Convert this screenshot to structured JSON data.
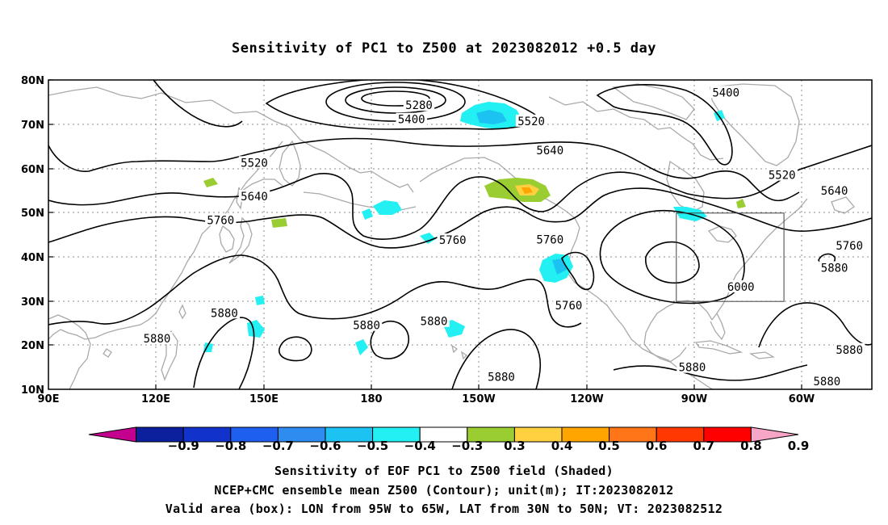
{
  "title": "Sensitivity of PC1 to Z500 at 2023082012 +0.5 day",
  "lat_labels": [
    "80N",
    "70N",
    "60N",
    "50N",
    "40N",
    "30N",
    "20N",
    "10N"
  ],
  "lon_labels": [
    "90E",
    "120E",
    "150E",
    "180",
    "150W",
    "120W",
    "90W",
    "60W"
  ],
  "contour_labels": [
    {
      "text": "5280",
      "lon": 189,
      "lat": 74.3
    },
    {
      "text": "5400",
      "lon": 187,
      "lat": 71.1
    },
    {
      "text": "5520",
      "lon": 219,
      "lat": 70.7
    },
    {
      "text": "5400",
      "lon": 271,
      "lat": 77.2
    },
    {
      "text": "5640",
      "lon": 224,
      "lat": 64.1
    },
    {
      "text": "5520",
      "lon": 145,
      "lat": 61.3
    },
    {
      "text": "5520",
      "lon": 286,
      "lat": 58.5
    },
    {
      "text": "5640",
      "lon": 145,
      "lat": 53.7
    },
    {
      "text": "5640",
      "lon": 300,
      "lat": 55.0
    },
    {
      "text": "5760",
      "lon": 136,
      "lat": 48.3
    },
    {
      "text": "5760",
      "lon": 198,
      "lat": 43.8
    },
    {
      "text": "5760",
      "lon": 224,
      "lat": 43.9
    },
    {
      "text": "5760",
      "lon": 304,
      "lat": 42.5
    },
    {
      "text": "5880",
      "lon": 300,
      "lat": 37.5
    },
    {
      "text": "6000",
      "lon": 275,
      "lat": 33.2
    },
    {
      "text": "5760",
      "lon": 229,
      "lat": 29.0
    },
    {
      "text": "5880",
      "lon": 137,
      "lat": 27.3
    },
    {
      "text": "5880",
      "lon": 119,
      "lat": 21.5
    },
    {
      "text": "5880",
      "lon": 175,
      "lat": 24.5
    },
    {
      "text": "5880",
      "lon": 193,
      "lat": 25.4
    },
    {
      "text": "5880",
      "lon": 304,
      "lat": 19.0
    },
    {
      "text": "5880",
      "lon": 262,
      "lat": 15.0
    },
    {
      "text": "5880",
      "lon": 211,
      "lat": 12.8
    },
    {
      "text": "5880",
      "lon": 298,
      "lat": 11.8
    }
  ],
  "valid_box": {
    "lon_west": -95,
    "lon_east": -65,
    "lat_south": 30,
    "lat_north": 50
  },
  "colorbar": {
    "tick_labels": [
      "-0.9",
      "-0.8",
      "-0.7",
      "-0.6",
      "-0.5",
      "-0.4",
      "-0.3",
      "0.3",
      "0.4",
      "0.5",
      "0.6",
      "0.7",
      "0.8",
      "0.9"
    ],
    "colors": [
      "#c4008f",
      "#0c1f9c",
      "#1133cc",
      "#1f5ff0",
      "#2e8cf0",
      "#1cc3f2",
      "#22f0f2",
      "#ffffff",
      "#9acd32",
      "#ffd040",
      "#ffa500",
      "#ff7518",
      "#ff3700",
      "#ff0000",
      "#f7a6c8"
    ]
  },
  "shading_colors": {
    "cyan": "#22f0f2",
    "lightblue": "#1cc3f2",
    "green": "#9acd32",
    "yellow": "#ffd040",
    "orange": "#ffa500"
  },
  "captions": [
    "Sensitivity of EOF PC1 to Z500 field (Shaded)",
    "NCEP+CMC ensemble mean Z500 (Contour); unit(m); IT:2023082012",
    "Valid area (box): LON from 95W to 65W, LAT from 30N to 50N; VT: 2023082512"
  ]
}
